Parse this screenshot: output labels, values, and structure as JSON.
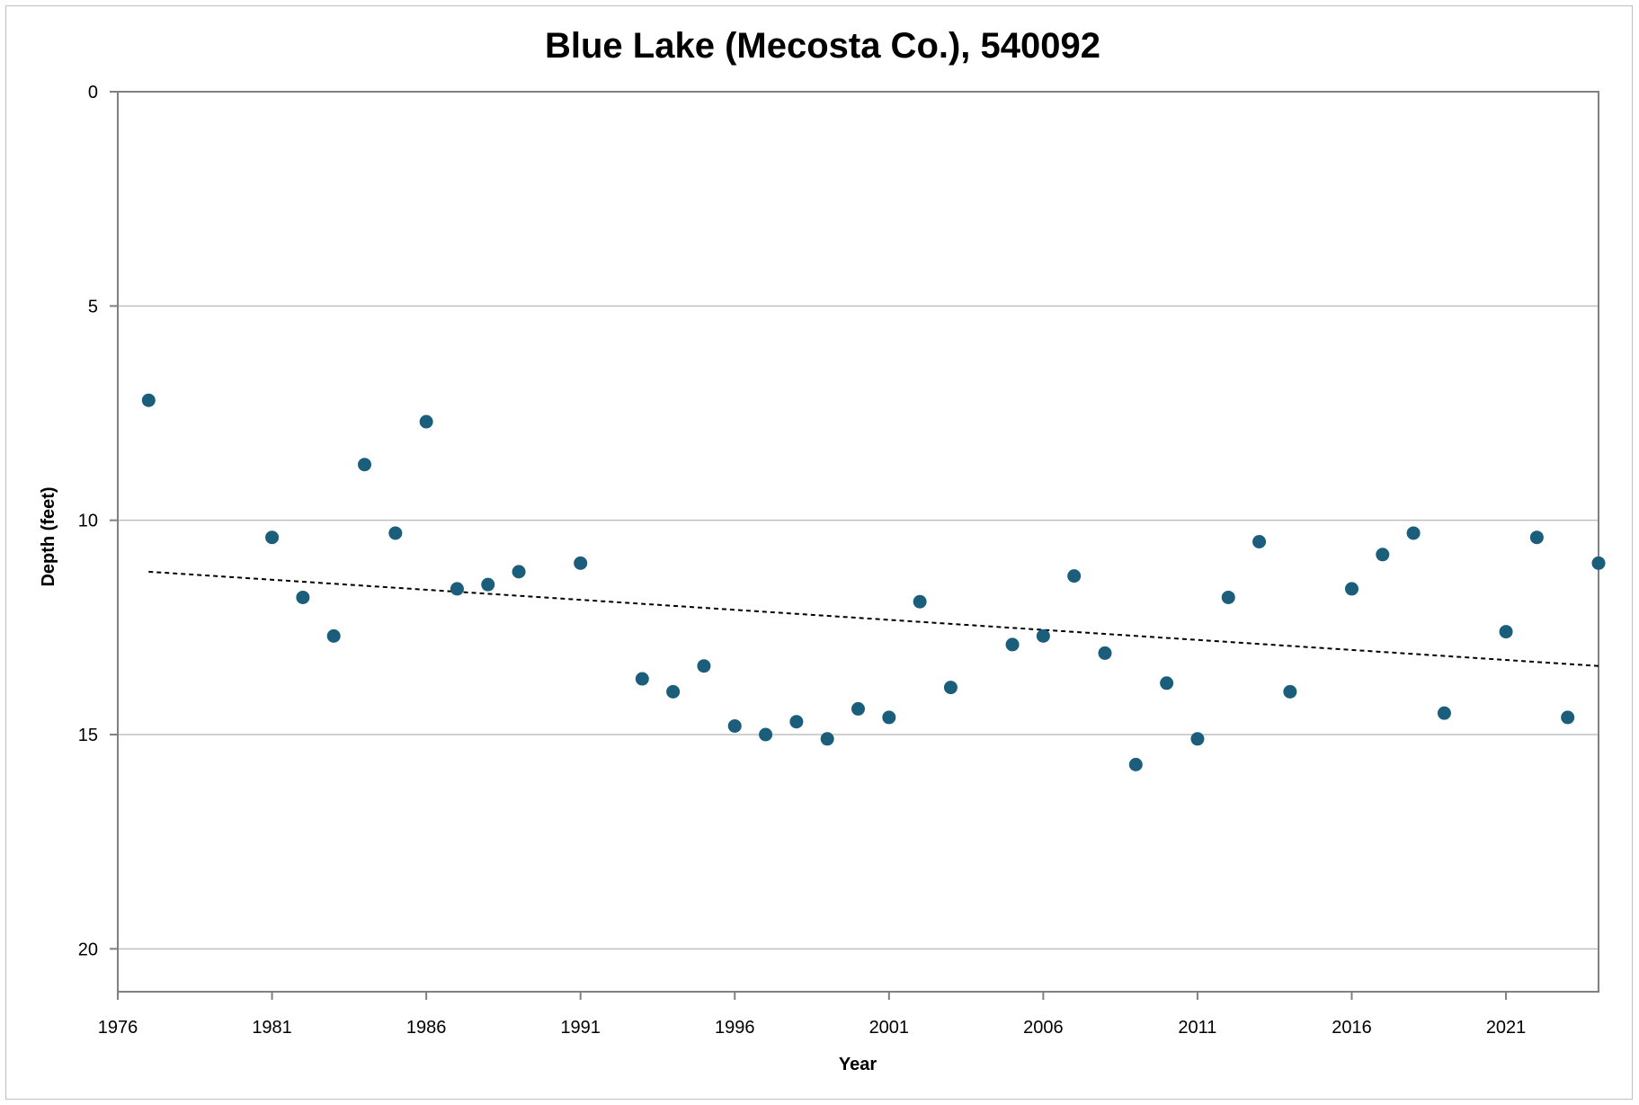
{
  "chart_data": {
    "type": "scatter",
    "title": "Blue Lake (Mecosta Co.), 540092",
    "xlabel": "Year",
    "ylabel": "Depth (feet)",
    "xlim": [
      1976,
      2024
    ],
    "ylim": [
      0,
      21
    ],
    "y_inverted": true,
    "x_ticks": [
      "1976",
      "1981",
      "1986",
      "1991",
      "1996",
      "2001",
      "2006",
      "2011",
      "2016",
      "2021"
    ],
    "y_ticks": [
      "0",
      "5",
      "10",
      "15",
      "20"
    ],
    "grid": "horizontal",
    "legend": "none",
    "marker_color": "#1b5e7b",
    "trendline": {
      "type": "linear",
      "style": "dotted",
      "color": "#000000",
      "x": [
        1977,
        2024
      ],
      "y": [
        11.2,
        13.4
      ]
    },
    "series": [
      {
        "x": [
          1977,
          1981,
          1982,
          1983,
          1984,
          1985,
          1986,
          1987,
          1988,
          1989,
          1991,
          1993,
          1994,
          1995,
          1996,
          1997,
          1998,
          1999,
          2000,
          2001,
          2002,
          2003,
          2005,
          2006,
          2007,
          2008,
          2009,
          2010,
          2011,
          2012,
          2013,
          2014,
          2016,
          2017,
          2018,
          2019,
          2021,
          2022,
          2023,
          2024
        ],
        "y": [
          7.2,
          10.4,
          11.8,
          12.7,
          8.7,
          10.3,
          7.7,
          11.6,
          11.5,
          11.2,
          11.0,
          13.7,
          14.0,
          13.4,
          14.8,
          15.0,
          14.7,
          15.1,
          14.4,
          14.6,
          11.9,
          13.9,
          12.9,
          12.7,
          11.3,
          13.1,
          15.7,
          13.8,
          15.1,
          11.8,
          10.5,
          14.0,
          11.6,
          10.8,
          10.3,
          14.5,
          12.6,
          10.4,
          14.6,
          11.0
        ]
      }
    ]
  }
}
